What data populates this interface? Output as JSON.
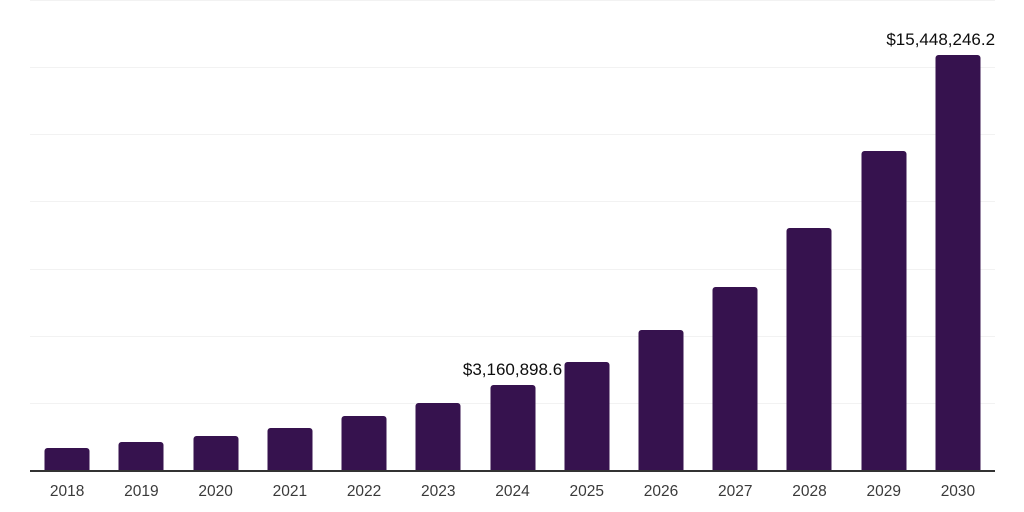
{
  "chart_data": {
    "type": "bar",
    "title": "",
    "xlabel": "",
    "ylabel": "",
    "categories": [
      "2018",
      "2019",
      "2020",
      "2021",
      "2022",
      "2023",
      "2024",
      "2025",
      "2026",
      "2027",
      "2028",
      "2029",
      "2030"
    ],
    "values": [
      820000,
      1040000,
      1270000,
      1560000,
      2010000,
      2500000,
      3160898.6,
      4020000,
      5210000,
      6820000,
      9010000,
      11880000,
      15448246.2
    ],
    "data_labels": [
      {
        "index": 6,
        "text": "$3,160,898.6",
        "align": "center"
      },
      {
        "index": 12,
        "text": "$15,448,246.2",
        "align": "right"
      }
    ],
    "ylim": [
      0,
      17500000
    ],
    "gridline_step": 2500000,
    "grid": true,
    "y_axis_tick_labels_visible": false,
    "legend": "none",
    "colors": {
      "bar": "#36124E",
      "gridline": "#f2f2f2",
      "axis": "#333333",
      "data_label": "#0d0d0d",
      "tick_label": "#3a3a3a",
      "background": "#ffffff"
    }
  }
}
